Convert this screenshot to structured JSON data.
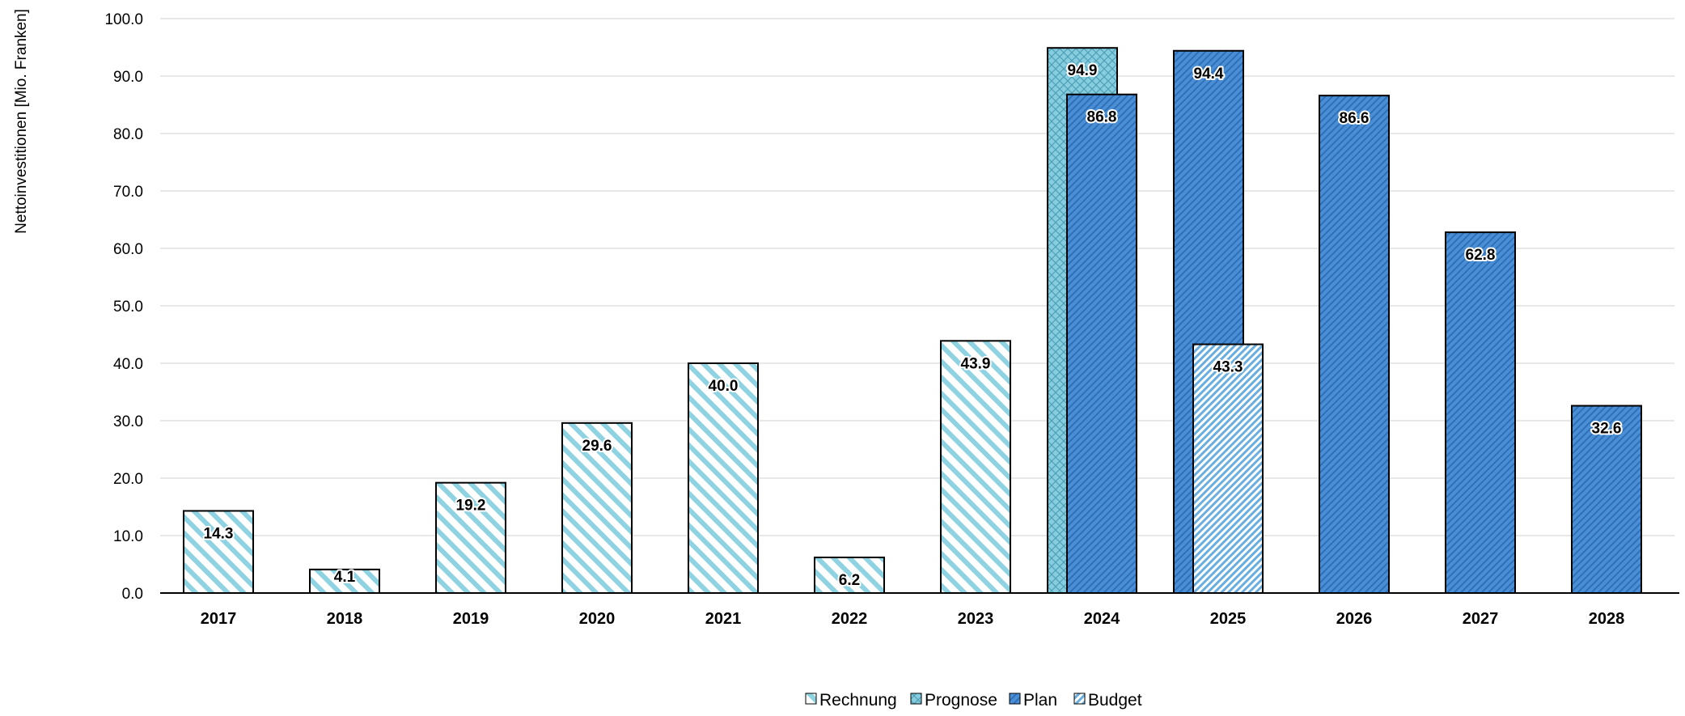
{
  "chart_data": {
    "type": "bar",
    "title": "",
    "xlabel": "",
    "ylabel": "Nettoinvestitionen [Mio. Franken]",
    "ylim": [
      0,
      100
    ],
    "yticks": [
      "0.0",
      "10.0",
      "20.0",
      "30.0",
      "40.0",
      "50.0",
      "60.0",
      "70.0",
      "80.0",
      "90.0",
      "100.0"
    ],
    "grid": true,
    "legend_position": "bottom-center",
    "categories": [
      "2017",
      "2018",
      "2019",
      "2020",
      "2021",
      "2022",
      "2023",
      "2024",
      "2025",
      "2026",
      "2027",
      "2028"
    ],
    "series": [
      {
        "name": "Rechnung",
        "pattern": "diagonal-stripes-light",
        "color": "#8fd3e3",
        "values": [
          14.3,
          4.1,
          19.2,
          29.6,
          40.0,
          6.2,
          43.9,
          null,
          null,
          null,
          null,
          null
        ],
        "labels": [
          "14.3",
          "4.1",
          "19.2",
          "29.6",
          "40.0",
          "6.2",
          "43.9",
          null,
          null,
          null,
          null,
          null
        ]
      },
      {
        "name": "Prognose",
        "pattern": "crosshatch",
        "color": "#7fc8da",
        "values": [
          null,
          null,
          null,
          null,
          null,
          null,
          null,
          94.9,
          null,
          null,
          null,
          null
        ],
        "labels": [
          null,
          null,
          null,
          null,
          null,
          null,
          null,
          "94.9",
          null,
          null,
          null,
          null
        ]
      },
      {
        "name": "Plan",
        "pattern": "dense-diagonal-blue",
        "color": "#4a8fd6",
        "values": [
          null,
          null,
          null,
          null,
          null,
          null,
          null,
          86.8,
          94.4,
          86.6,
          62.8,
          32.6
        ],
        "labels": [
          null,
          null,
          null,
          null,
          null,
          null,
          null,
          "86.8",
          "94.4",
          "86.6",
          "62.8",
          "32.6"
        ]
      },
      {
        "name": "Budget",
        "pattern": "fine-diagonal-blue",
        "color": "#6aaee0",
        "values": [
          null,
          null,
          null,
          null,
          null,
          null,
          null,
          null,
          43.3,
          null,
          null,
          null
        ],
        "labels": [
          null,
          null,
          null,
          null,
          null,
          null,
          null,
          null,
          "43.3",
          null,
          null,
          null
        ]
      }
    ]
  },
  "legend": {
    "items": [
      {
        "label": "Rechnung"
      },
      {
        "label": "Prognose"
      },
      {
        "label": "Plan"
      },
      {
        "label": "Budget"
      }
    ]
  },
  "colors": {
    "grid": "#d9d9d9",
    "axis": "#000000",
    "stripe_light": "#8fd3e3",
    "plan_blue": "#4a8fd6",
    "plan_blue_dark": "#2f6fb5",
    "budget_blue": "#6aaee0"
  }
}
